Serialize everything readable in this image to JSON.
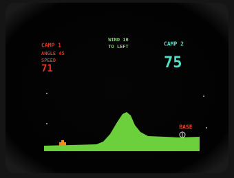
{
  "left_player": {
    "label": "CAMP 1",
    "lines": [
      "ANGLE 45",
      "SPEED",
      "71"
    ]
  },
  "wind": {
    "label": "WIND 10",
    "direction": "TO LEFT"
  },
  "right_player": {
    "label": "CAMP 2",
    "lines": [
      "75"
    ]
  },
  "target": {
    "label": "BASE"
  }
}
